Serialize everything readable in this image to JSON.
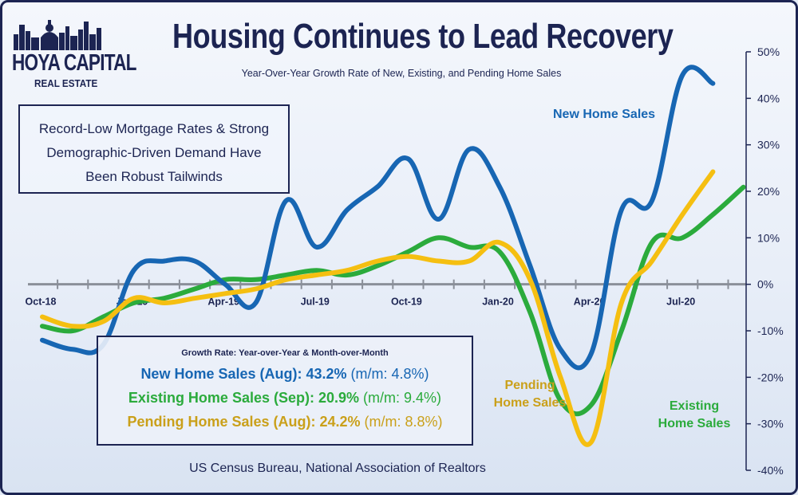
{
  "logo": {
    "main_text": "HOYA CAPITAL",
    "sub_text": "REAL ESTATE",
    "icon": "city-skyline-icon"
  },
  "chart_data": {
    "type": "line",
    "title": "Housing Continues to Lead Recovery",
    "subtitle": "Year-Over-Year Growth Rate of New, Existing, and Pending Home Sales",
    "x": [
      "2018-10",
      "2018-11",
      "2018-12",
      "2019-01",
      "2019-02",
      "2019-03",
      "2019-04",
      "2019-05",
      "2019-06",
      "2019-07",
      "2019-08",
      "2019-09",
      "2019-10",
      "2019-11",
      "2019-12",
      "2020-01",
      "2020-02",
      "2020-03",
      "2020-04",
      "2020-05",
      "2020-06",
      "2020-07",
      "2020-08",
      "2020-09"
    ],
    "x_tick_labels": [
      "Oct-18",
      "Jan-19",
      "Apr-19",
      "Jul-19",
      "Oct-19",
      "Jan-20",
      "Apr-20",
      "Jul-20"
    ],
    "y_tick_labels": [
      "50%",
      "40%",
      "30%",
      "20%",
      "10%",
      "0%",
      "-10%",
      "-20%",
      "-30%",
      "-40%"
    ],
    "ylim": [
      -40,
      50
    ],
    "xlabel": "",
    "ylabel": "",
    "y_axis_side": "right",
    "series": [
      {
        "name": "New Home Sales",
        "color": "#1766b3",
        "values": [
          -12,
          -14,
          -13,
          3,
          5,
          5,
          0,
          -4,
          18,
          8,
          16,
          21,
          27,
          14,
          29,
          21,
          4,
          -14,
          -15,
          16,
          18,
          45,
          43.2,
          null
        ]
      },
      {
        "name": "Existing Home Sales",
        "color": "#2bab3c",
        "values": [
          -9,
          -10,
          -7,
          -4,
          -3,
          -1,
          1,
          1,
          2,
          3,
          2,
          4,
          7,
          10,
          8,
          7,
          -6,
          -25,
          -26,
          -10,
          9,
          10,
          15,
          20.9
        ]
      },
      {
        "name": "Pending Home Sales",
        "color": "#f5bf11",
        "values": [
          -7,
          -9,
          -8,
          -3,
          -4,
          -3,
          -2,
          -1,
          1,
          2,
          3,
          5,
          6,
          5,
          5,
          9,
          1,
          -20,
          -34,
          -4,
          5,
          15,
          24.2,
          null
        ]
      }
    ],
    "legend": "inline-labels"
  },
  "series_labels": {
    "new": "New Home Sales",
    "pending_line1": "Pending",
    "pending_line2": "Home Sales",
    "existing_line1": "Existing",
    "existing_line2": "Home Sales"
  },
  "note": {
    "line1": "Record-Low Mortgage Rates & Strong",
    "line2": "Demographic-Driven Demand Have",
    "line3": "Been Robust Tailwinds"
  },
  "stats": {
    "heading": "Growth Rate: Year-over-Year & Month-over-Month",
    "new_label": "New Home Sales (Aug): 43.2%",
    "new_mm": "(m/m: 4.8%)",
    "existing_label": "Existing Home Sales (Sep): 20.9%",
    "existing_mm": "(m/m: 9.4%)",
    "pending_label": "Pending Home Sales (Aug): 24.2%",
    "pending_mm": "(m/m: 8.8%)"
  },
  "source": "US Census Bureau, National Association of Realtors",
  "colors": {
    "navy": "#1c2452",
    "new": "#1766b3",
    "existing": "#2bab3c",
    "pending": "#f5bf11",
    "pending_text": "#caa01a"
  }
}
